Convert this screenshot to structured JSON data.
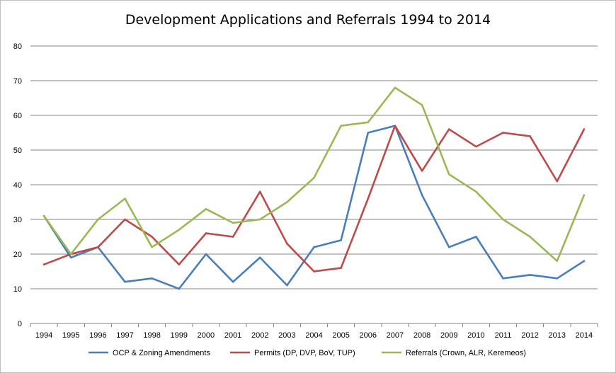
{
  "chart_data": {
    "type": "line",
    "title": "Development Applications and Referrals 1994 to 2014",
    "xlabel": "",
    "ylabel": "",
    "ylim": [
      0,
      80
    ],
    "yticks": [
      0,
      10,
      20,
      30,
      40,
      50,
      60,
      70,
      80
    ],
    "grid": true,
    "legend_position": "bottom",
    "categories": [
      "1994",
      "1995",
      "1996",
      "1997",
      "1998",
      "1999",
      "2000",
      "2001",
      "2002",
      "2003",
      "2004",
      "2005",
      "2006",
      "2007",
      "2008",
      "2009",
      "2010",
      "2011",
      "2012",
      "2013",
      "2014"
    ],
    "series": [
      {
        "name": "OCP & Zoning Amendments",
        "color": "#4a7ebb",
        "values": [
          31,
          19,
          22,
          12,
          13,
          10,
          20,
          12,
          19,
          11,
          22,
          24,
          55,
          57,
          37,
          22,
          25,
          13,
          14,
          13,
          18
        ]
      },
      {
        "name": "Permits (DP, DVP, BoV, TUP)",
        "color": "#be4b48",
        "values": [
          17,
          20,
          22,
          30,
          25,
          17,
          26,
          25,
          38,
          23,
          15,
          16,
          36,
          57,
          44,
          56,
          51,
          55,
          54,
          41,
          56
        ]
      },
      {
        "name": "Referrals (Crown, ALR, Keremeos)",
        "color": "#98b954",
        "values": [
          31,
          20,
          30,
          36,
          22,
          27,
          33,
          29,
          30,
          35,
          42,
          57,
          58,
          68,
          63,
          43,
          38,
          30,
          25,
          18,
          37
        ]
      }
    ]
  }
}
